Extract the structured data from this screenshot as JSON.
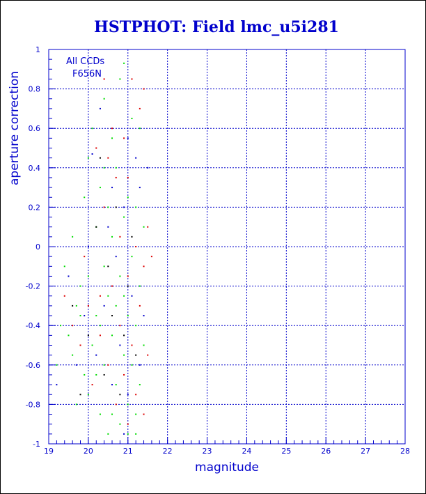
{
  "chart_data": {
    "type": "scatter",
    "title": "HSTPHOT: Field lmc_u5i281",
    "xlabel": "magnitude",
    "ylabel": "aperture correction",
    "xlim": [
      19,
      28
    ],
    "ylim": [
      -1,
      1
    ],
    "xticks": [
      "19",
      "20",
      "21",
      "22",
      "23",
      "24",
      "25",
      "26",
      "27",
      "28"
    ],
    "yticks": [
      "-1",
      "-0.8",
      "-0.6",
      "-0.4",
      "-0.2",
      "0",
      "0.2",
      "0.4",
      "0.6",
      "0.8",
      "1"
    ],
    "grid": true,
    "annotations": [
      "All CCDs",
      "F656N"
    ],
    "colors": {
      "axes": "#0000cc",
      "grid": "#0000cc",
      "green": "#00dd00",
      "red": "#dd0000",
      "blue": "#0000cc",
      "black": "#000000"
    },
    "series": [
      {
        "color": "#00dd00",
        "points": [
          [
            19.5,
            -0.45
          ],
          [
            19.6,
            -0.55
          ],
          [
            19.7,
            -0.3
          ],
          [
            19.8,
            -0.2
          ],
          [
            19.9,
            -0.65
          ],
          [
            19.9,
            0.25
          ],
          [
            20.0,
            -0.75
          ],
          [
            20.0,
            -0.15
          ],
          [
            20.0,
            0.45
          ],
          [
            20.1,
            -0.5
          ],
          [
            20.1,
            0.6
          ],
          [
            20.2,
            -0.35
          ],
          [
            20.2,
            0.1
          ],
          [
            20.3,
            -0.85
          ],
          [
            20.3,
            -0.4
          ],
          [
            20.3,
            0.3
          ],
          [
            20.4,
            -0.6
          ],
          [
            20.4,
            -0.1
          ],
          [
            20.4,
            0.75
          ],
          [
            20.5,
            -0.95
          ],
          [
            20.5,
            -0.25
          ],
          [
            20.5,
            0.2
          ],
          [
            20.6,
            -0.45
          ],
          [
            20.6,
            0.05
          ],
          [
            20.6,
            0.55
          ],
          [
            20.7,
            -0.7
          ],
          [
            20.7,
            -0.3
          ],
          [
            20.7,
            0.4
          ],
          [
            20.8,
            -0.9
          ],
          [
            20.8,
            -0.15
          ],
          [
            20.8,
            0.85
          ],
          [
            20.9,
            -0.55
          ],
          [
            20.9,
            0.15
          ],
          [
            20.9,
            0.93
          ],
          [
            21.0,
            -0.8
          ],
          [
            21.0,
            -0.35
          ],
          [
            21.0,
            0.25
          ],
          [
            21.1,
            -0.6
          ],
          [
            21.1,
            -0.05
          ],
          [
            21.1,
            0.65
          ],
          [
            21.2,
            -0.95
          ],
          [
            21.2,
            -0.4
          ],
          [
            21.2,
            0.2
          ],
          [
            21.3,
            -0.7
          ],
          [
            21.3,
            -0.2
          ],
          [
            21.3,
            0.6
          ],
          [
            21.4,
            -0.5
          ],
          [
            21.4,
            0.1
          ],
          [
            19.3,
            -0.4
          ],
          [
            19.2,
            -0.6
          ],
          [
            19.4,
            -0.1
          ],
          [
            19.6,
            0.05
          ],
          [
            19.8,
            -0.35
          ],
          [
            20.2,
            -0.65
          ],
          [
            20.6,
            -0.85
          ],
          [
            21.0,
            -0.95
          ],
          [
            20.4,
            0.4
          ],
          [
            19.7,
            -0.8
          ],
          [
            20.9,
            -0.25
          ],
          [
            21.2,
            -0.85
          ]
        ]
      },
      {
        "color": "#dd0000",
        "points": [
          [
            19.4,
            -0.25
          ],
          [
            19.6,
            -0.4
          ],
          [
            19.8,
            -0.5
          ],
          [
            20.0,
            -0.3
          ],
          [
            20.1,
            -0.7
          ],
          [
            20.2,
            0.5
          ],
          [
            20.3,
            -0.45
          ],
          [
            20.4,
            0.2
          ],
          [
            20.5,
            -0.6
          ],
          [
            20.5,
            0.45
          ],
          [
            20.6,
            -0.2
          ],
          [
            20.7,
            -0.8
          ],
          [
            20.7,
            0.35
          ],
          [
            20.8,
            -0.4
          ],
          [
            20.8,
            0.05
          ],
          [
            20.9,
            -0.65
          ],
          [
            20.9,
            0.55
          ],
          [
            21.0,
            -0.15
          ],
          [
            21.0,
            0.35
          ],
          [
            21.1,
            -0.5
          ],
          [
            21.1,
            0.85
          ],
          [
            21.2,
            -0.75
          ],
          [
            21.2,
            0.0
          ],
          [
            21.3,
            -0.3
          ],
          [
            21.3,
            0.7
          ],
          [
            21.4,
            -0.85
          ],
          [
            21.4,
            -0.1
          ],
          [
            21.5,
            -0.55
          ],
          [
            21.5,
            0.1
          ],
          [
            21.6,
            -0.05
          ],
          [
            20.4,
            0.85
          ],
          [
            20.6,
            0.6
          ],
          [
            21.0,
            -0.9
          ],
          [
            19.9,
            -0.05
          ],
          [
            20.3,
            -0.25
          ],
          [
            21.4,
            0.8
          ]
        ]
      },
      {
        "color": "#0000cc",
        "points": [
          [
            19.5,
            -0.15
          ],
          [
            19.7,
            -0.6
          ],
          [
            19.9,
            -0.35
          ],
          [
            20.0,
            0.0
          ],
          [
            20.2,
            -0.55
          ],
          [
            20.3,
            0.7
          ],
          [
            20.4,
            -0.3
          ],
          [
            20.5,
            0.1
          ],
          [
            20.6,
            -0.7
          ],
          [
            20.6,
            0.3
          ],
          [
            20.7,
            -0.05
          ],
          [
            20.8,
            -0.5
          ],
          [
            20.9,
            0.2
          ],
          [
            21.0,
            -0.75
          ],
          [
            21.0,
            0.55
          ],
          [
            21.1,
            -0.25
          ],
          [
            21.2,
            0.45
          ],
          [
            21.3,
            -0.6
          ],
          [
            21.3,
            0.3
          ],
          [
            21.4,
            -0.35
          ],
          [
            21.5,
            0.4
          ],
          [
            19.2,
            -0.7
          ],
          [
            20.1,
            0.47
          ],
          [
            20.9,
            -0.95
          ]
        ]
      },
      {
        "color": "#000000",
        "points": [
          [
            19.6,
            -0.3
          ],
          [
            20.0,
            -0.45
          ],
          [
            20.2,
            0.1
          ],
          [
            20.4,
            -0.65
          ],
          [
            20.6,
            -0.35
          ],
          [
            20.7,
            0.2
          ],
          [
            20.8,
            -0.75
          ],
          [
            21.0,
            -0.2
          ],
          [
            21.1,
            0.05
          ],
          [
            21.2,
            -0.55
          ],
          [
            19.8,
            -0.75
          ],
          [
            20.5,
            -0.1
          ],
          [
            20.9,
            -0.45
          ],
          [
            20.3,
            0.45
          ]
        ]
      }
    ]
  }
}
